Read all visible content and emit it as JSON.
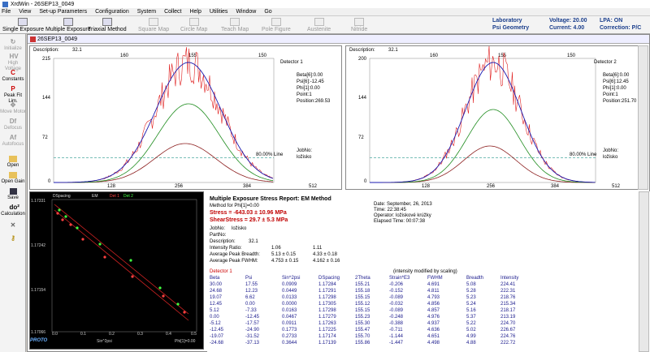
{
  "window": {
    "title": "XrdWin - 26SEP13_0049"
  },
  "menu": [
    "File",
    "View",
    "Set-up Parameters",
    "Configuration",
    "System",
    "Collect",
    "Help",
    "Utilities",
    "Window",
    "Go"
  ],
  "toolbar": {
    "single": "Single Exposure",
    "multiple": "Multiple Exposure",
    "triaxial": "Triaxial Method",
    "square": "Square Map",
    "circle": "Circle Map",
    "teach": "Teach Map",
    "pole": "Pole Figure",
    "austenite": "Austenite",
    "nitride": "Nitride"
  },
  "status": {
    "laboratory": "Laboratory",
    "psi_geometry": "Psi Geometry",
    "voltage": "Voltage: 20.00",
    "current": "Current: 4.00",
    "lpa": "LPA: ON",
    "correction": "Correction: P/C"
  },
  "leftbar": {
    "initialize": "Initialize",
    "hv": "High Voltage",
    "hv_icon": "HV",
    "constants": "Constants",
    "constants_icon": "C",
    "peakfit": "Peak Fit Lim.",
    "peakfit_icon": "P",
    "move": "Move Motor",
    "defocus": "Defocus",
    "df_icon": "Df",
    "autofocus": "Autofocus",
    "af_icon": "Af",
    "open": "Open",
    "opengain": "Open Gain",
    "save": "Save",
    "calc": "Calculation",
    "calc_icon": "do²"
  },
  "doc": {
    "title": "26SEP13_0049"
  },
  "det1": {
    "description_label": "Description:",
    "description": "32.1",
    "title": "Detector  1",
    "beta": "Beta[6]:0.00",
    "psi": "Psi[6]:-12.45",
    "phi": "Phi[1]:0.00",
    "point": "Point:1",
    "position": "Position:269.53",
    "line_label": "80.00% Line",
    "jobno": "JobNo:",
    "jobname": "ložisko",
    "ymax": "215",
    "ymid": "144",
    "ylow": "72",
    "yzero": "0",
    "xlow": "128",
    "xpeak": "256",
    "xhigh": "384",
    "xmax": "512",
    "t1": "160",
    "t2": "155",
    "t3": "150"
  },
  "det2": {
    "description_label": "Description:",
    "description": "32.1",
    "title": "Detector  2",
    "beta": "Beta[6]:0.00",
    "psi": "Psi[6]:12.45",
    "phi": "Phi[1]:0.00",
    "point": "Point:1",
    "position": "Position:251.70",
    "line_label": "80.00% Line",
    "jobno": "JobNo:",
    "jobname": "ložisko",
    "ymax": "200",
    "ymid": "144",
    "ylow": "72",
    "yzero": "0",
    "xlow": "128",
    "xpeak": "256",
    "xhigh": "384",
    "xmax": "512",
    "t1": "160",
    "t2": "155",
    "t3": "150"
  },
  "stressplot": {
    "xlabel": "Sin^2psi",
    "ylabel": "DSpacing",
    "legend_em": "EM",
    "legend_det1": "Det 1",
    "legend_det2": "Det 2",
    "phi": "Phi[1]=0.00",
    "yticks": [
      "1.17331",
      "1.17242",
      "1.17154",
      "1.17066"
    ],
    "xticks": [
      "0.0",
      "0.1",
      "0.2",
      "0.3",
      "0.4",
      "0.5"
    ],
    "logo": "PROTO"
  },
  "report": {
    "title": "Multiple Exposure Stress Report: EM Method",
    "method": "Method for Phi[1]=0.00",
    "stress": "Stress = -643.03 ± 10.96 MPa",
    "shear": "ShearStress = 29.7 ± 5.3 MPa",
    "date": "Date: September, 26, 2013",
    "time": "Time: 22:38:45",
    "operator": "Operator: ložiskové krúžky",
    "elapsed": "Elapsed Time: 00:07:38",
    "jobno": "JobNo:",
    "jobno_v": "ložisko",
    "partno": "PartNo:",
    "desc": "Description:",
    "desc_v": "32.1",
    "ir": "Intensity Ratio:",
    "ir1": "1.06",
    "ir2": "1.11",
    "apb": "Average Peak Breadth:",
    "apb1": "5.13 ± 0.15",
    "apb2": "4.33 ± 0.18",
    "apf": "Average Peak FWHM:",
    "apf1": "4.753 ± 0.15",
    "apf2": "4.162 ± 0.16",
    "det": "Detector 1",
    "note": "(intensity modified by scaling)",
    "cols": [
      "Beta",
      "Psi",
      "Sin^2psi",
      "DSpacing",
      "2Theta",
      "Strain*E3",
      "FWHM",
      "Breadth",
      "Intensity"
    ],
    "rows": [
      [
        "30.00",
        "17.55",
        "0.0909",
        "1.17284",
        "155.21",
        "-0.206",
        "4.691",
        "5.08",
        "224.41"
      ],
      [
        "24.68",
        "12.23",
        "0.0449",
        "1.17291",
        "155.18",
        "-0.152",
        "4.811",
        "5.28",
        "222.31"
      ],
      [
        "19.07",
        "6.62",
        "0.0133",
        "1.17298",
        "155.15",
        "-0.089",
        "4.793",
        "5.23",
        "218.76"
      ],
      [
        "12.45",
        "0.00",
        "0.0000",
        "1.17305",
        "155.12",
        "-0.032",
        "4.856",
        "5.24",
        "215.34"
      ],
      [
        "5.12",
        "-7.33",
        "0.0163",
        "1.17298",
        "155.15",
        "-0.089",
        "4.857",
        "5.16",
        "218.17"
      ],
      [
        "0.00",
        "-12.45",
        "0.0467",
        "1.17279",
        "155.23",
        "-0.248",
        "4.976",
        "5.37",
        "213.19"
      ],
      [
        "-5.12",
        "-17.57",
        "0.0911",
        "1.17263",
        "155.30",
        "-0.388",
        "4.937",
        "5.22",
        "224.70"
      ],
      [
        "-12.45",
        "-24.90",
        "0.1773",
        "1.17225",
        "155.47",
        "-0.711",
        "4.636",
        "5.02",
        "226.67"
      ],
      [
        "-19.07",
        "-31.52",
        "0.2733",
        "1.17174",
        "155.70",
        "-1.144",
        "4.651",
        "4.99",
        "224.76"
      ],
      [
        "-24.68",
        "-37.13",
        "0.3644",
        "1.17139",
        "155.86",
        "-1.447",
        "4.498",
        "4.88",
        "222.72"
      ]
    ]
  },
  "colors": {
    "raw": "#e02020",
    "fit": "#1a1ab0",
    "green": "#1e8c1e",
    "brown": "#8c1e1e",
    "line80": "#4caaa0",
    "stress": "#c00000"
  }
}
